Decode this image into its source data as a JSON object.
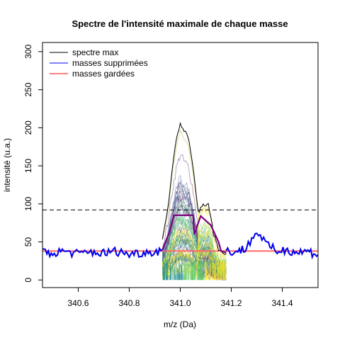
{
  "chart_data": {
    "type": "line",
    "title": "Spectre de l'intensité maximale de chaque masse",
    "xlabel": "m/z (Da)",
    "ylabel": "intensité (u.a.)",
    "xlim": [
      340.46,
      341.54
    ],
    "ylim": [
      -10,
      312
    ],
    "x_ticks": [
      340.6,
      340.8,
      341.0,
      341.2,
      341.4
    ],
    "x_tick_labels": [
      "340.6",
      "340.8",
      "341.0",
      "341.2",
      "341.4"
    ],
    "y_ticks": [
      0,
      50,
      100,
      150,
      200,
      250,
      300
    ],
    "y_tick_labels": [
      "0",
      "50",
      "100",
      "150",
      "200",
      "250",
      "300"
    ],
    "threshold": {
      "y": 92,
      "style": "dashed",
      "color": "#000000"
    },
    "legend": {
      "position": "top-left",
      "entries": [
        {
          "label": "spectre max",
          "color": "#000000"
        },
        {
          "label": "masses supprimées",
          "color": "#0000ff"
        },
        {
          "label": "masses gardées",
          "color": "#ff0000"
        }
      ]
    },
    "colors": {
      "spectre_max": "#000000",
      "removed": "#0000ee",
      "kept": "#ff6666",
      "envelope": "#7f007f",
      "ridge_pale": "#e8e8b8",
      "gradient": [
        "#440154",
        "#3b528b",
        "#21908d",
        "#5dc863",
        "#fde725"
      ]
    },
    "series": [
      {
        "name": "spectre max",
        "x": [
          340.93,
          340.95,
          340.97,
          340.985,
          341.0,
          341.015,
          341.03,
          341.045,
          341.06,
          341.07,
          341.08,
          341.09,
          341.1,
          341.11,
          341.12,
          341.13,
          341.15,
          341.18
        ],
        "values": [
          55,
          90,
          150,
          185,
          207,
          195,
          188,
          160,
          120,
          90,
          93,
          99,
          96,
          100,
          85,
          60,
          40,
          35
        ]
      },
      {
        "name": "masses supprimées",
        "x": [
          340.46,
          340.5,
          340.55,
          340.6,
          340.65,
          340.7,
          340.75,
          340.8,
          340.85,
          340.9,
          340.93,
          341.18,
          341.22,
          341.26,
          341.28,
          341.3,
          341.32,
          341.34,
          341.38,
          341.42,
          341.46,
          341.5,
          341.54
        ],
        "values": [
          37,
          35,
          38,
          34,
          37,
          35,
          38,
          34,
          36,
          37,
          40,
          38,
          37,
          42,
          55,
          62,
          57,
          45,
          38,
          40,
          36,
          38,
          33
        ]
      },
      {
        "name": "masses gardées",
        "x": [
          340.46,
          341.54
        ],
        "values": [
          38,
          38
        ]
      },
      {
        "name": "",
        "x": [
          340.93,
          340.96,
          340.975,
          341.05,
          341.055,
          341.08,
          341.1,
          341.12,
          341.15,
          341.16,
          341.18
        ],
        "values": [
          40,
          65,
          85,
          85,
          60,
          84,
          78,
          72,
          50,
          38,
          36
        ]
      }
    ]
  }
}
